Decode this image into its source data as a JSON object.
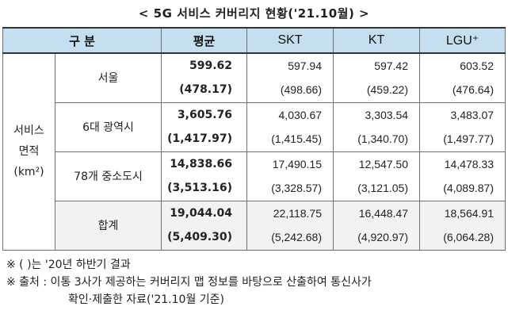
{
  "title": "< 5G 서비스 커버리지 현황('21.10월) >",
  "header": {
    "category": "구 분",
    "avg": "평균",
    "skt": "SKT",
    "kt": "KT",
    "lgu": "LGU⁺"
  },
  "group_label": "서비스\n면적\n(km²)",
  "rows": [
    {
      "region": "서울",
      "avg": "599.62",
      "avg_prev": "(478.17)",
      "skt": "597.94",
      "skt_prev": "(498.66)",
      "kt": "597.42",
      "kt_prev": "(459.22)",
      "lgu": "603.52",
      "lgu_prev": "(476.64)"
    },
    {
      "region": "6대 광역시",
      "avg": "3,605.76",
      "avg_prev": "(1,417.97)",
      "skt": "4,030.67",
      "skt_prev": "(1,415.45)",
      "kt": "3,303.54",
      "kt_prev": "(1,340.70)",
      "lgu": "3,483.07",
      "lgu_prev": "(1,497.77)"
    },
    {
      "region": "78개 중소도시",
      "avg": "14,838.66",
      "avg_prev": "(3,513.16)",
      "skt": "17,490.15",
      "skt_prev": "(3,328.57)",
      "kt": "12,547.50",
      "kt_prev": "(3,121.05)",
      "lgu": "14,478.33",
      "lgu_prev": "(4,089.87)"
    },
    {
      "region": "합계",
      "avg": "19,044.04",
      "avg_prev": "(5,409.30)",
      "skt": "22,118.75",
      "skt_prev": "(5,242.68)",
      "kt": "16,448.47",
      "kt_prev": "(4,920.97)",
      "lgu": "18,564.91",
      "lgu_prev": "(6,064.28)"
    }
  ],
  "notes": [
    "※ ( )는 '20년 하반기 결과",
    "※ 출처 : 이통 3사가 제공하는 커버리지 맵 정보를 바탕으로 산출하여 통신사가",
    "확인·제출한 자료('21.10월 기준)"
  ]
}
